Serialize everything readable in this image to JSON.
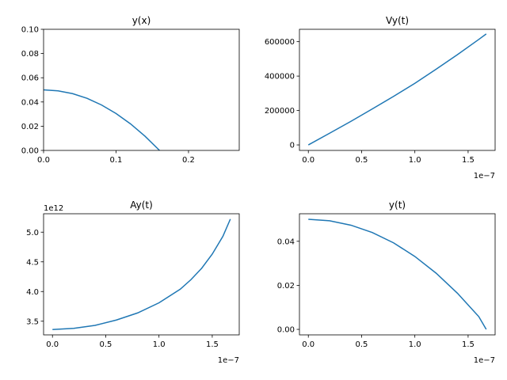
{
  "chart_data": [
    {
      "type": "line",
      "title": "y(x)",
      "xlim": [
        0,
        0.27
      ],
      "ylim": [
        0,
        0.1
      ],
      "xticks": [
        "0.0",
        "0.1",
        "0.2"
      ],
      "xtick_values": [
        0,
        0.1,
        0.2
      ],
      "yticks": [
        "0.00",
        "0.02",
        "0.04",
        "0.06",
        "0.08",
        "0.10"
      ],
      "ytick_values": [
        0,
        0.02,
        0.04,
        0.06,
        0.08,
        0.1
      ],
      "x_offset_label": "",
      "y_offset_label": "",
      "color": "#1f77b4",
      "series": [
        {
          "x": [
            0,
            0.02,
            0.04,
            0.06,
            0.08,
            0.1,
            0.12,
            0.14,
            0.16
          ],
          "y": [
            0.05,
            0.0492,
            0.0469,
            0.043,
            0.0375,
            0.0305,
            0.0219,
            0.0117,
            0.0
          ]
        }
      ]
    },
    {
      "type": "line",
      "title": "Vy(t)",
      "xlim": [
        -8.35e-09,
        1.7535e-07
      ],
      "ylim": [
        -32000,
        672000
      ],
      "xticks": [
        "0.0",
        "0.5",
        "1.0",
        "1.5"
      ],
      "xtick_values": [
        0,
        5e-08,
        1e-07,
        1.5e-07
      ],
      "yticks": [
        "0",
        "200000",
        "400000",
        "600000"
      ],
      "ytick_values": [
        0,
        200000,
        400000,
        600000
      ],
      "x_offset_label": "1e−7",
      "y_offset_label": "",
      "color": "#1f77b4",
      "series": [
        {
          "x": [
            0,
            2e-08,
            4e-08,
            6e-08,
            8e-08,
            1e-07,
            1.2e-07,
            1.4e-07,
            1.6e-07,
            1.67e-07
          ],
          "y": [
            0,
            68000,
            137000,
            209000,
            282000,
            358000,
            440000,
            525000,
            613000,
            645000
          ]
        }
      ]
    },
    {
      "type": "line",
      "title": "Ay(t)",
      "xlim": [
        -8.35e-09,
        1.7535e-07
      ],
      "ylim": [
        3270000000000.0,
        5310000000000.0
      ],
      "xticks": [
        "0.0",
        "0.5",
        "1.0",
        "1.5"
      ],
      "xtick_values": [
        0,
        5e-08,
        1e-07,
        1.5e-07
      ],
      "yticks": [
        "3.5",
        "4.0",
        "4.5",
        "5.0"
      ],
      "ytick_values": [
        3500000000000.0,
        4000000000000.0,
        4500000000000.0,
        5000000000000.0
      ],
      "x_offset_label": "1e−7",
      "y_offset_label": "1e12",
      "color": "#1f77b4",
      "series": [
        {
          "x": [
            0,
            2e-08,
            4e-08,
            6e-08,
            8e-08,
            1e-07,
            1.2e-07,
            1.3e-07,
            1.4e-07,
            1.5e-07,
            1.6e-07,
            1.67e-07
          ],
          "y": [
            3360000000000.0,
            3380000000000.0,
            3430000000000.0,
            3520000000000.0,
            3640000000000.0,
            3810000000000.0,
            4040000000000.0,
            4200000000000.0,
            4390000000000.0,
            4630000000000.0,
            4930000000000.0,
            5220000000000.0
          ]
        }
      ]
    },
    {
      "type": "line",
      "title": "y(t)",
      "xlim": [
        -8.35e-09,
        1.7535e-07
      ],
      "ylim": [
        -0.0025,
        0.0525
      ],
      "xticks": [
        "0.0",
        "0.5",
        "1.0",
        "1.5"
      ],
      "xtick_values": [
        0,
        5e-08,
        1e-07,
        1.5e-07
      ],
      "yticks": [
        "0.00",
        "0.02",
        "0.04"
      ],
      "ytick_values": [
        0,
        0.02,
        0.04
      ],
      "x_offset_label": "1e−7",
      "y_offset_label": "",
      "color": "#1f77b4",
      "series": [
        {
          "x": [
            0,
            2e-08,
            4e-08,
            6e-08,
            8e-08,
            1e-07,
            1.2e-07,
            1.4e-07,
            1.6e-07,
            1.67e-07
          ],
          "y": [
            0.05,
            0.0493,
            0.0473,
            0.044,
            0.0393,
            0.0331,
            0.0255,
            0.0164,
            0.0058,
            0.0
          ]
        }
      ]
    }
  ]
}
